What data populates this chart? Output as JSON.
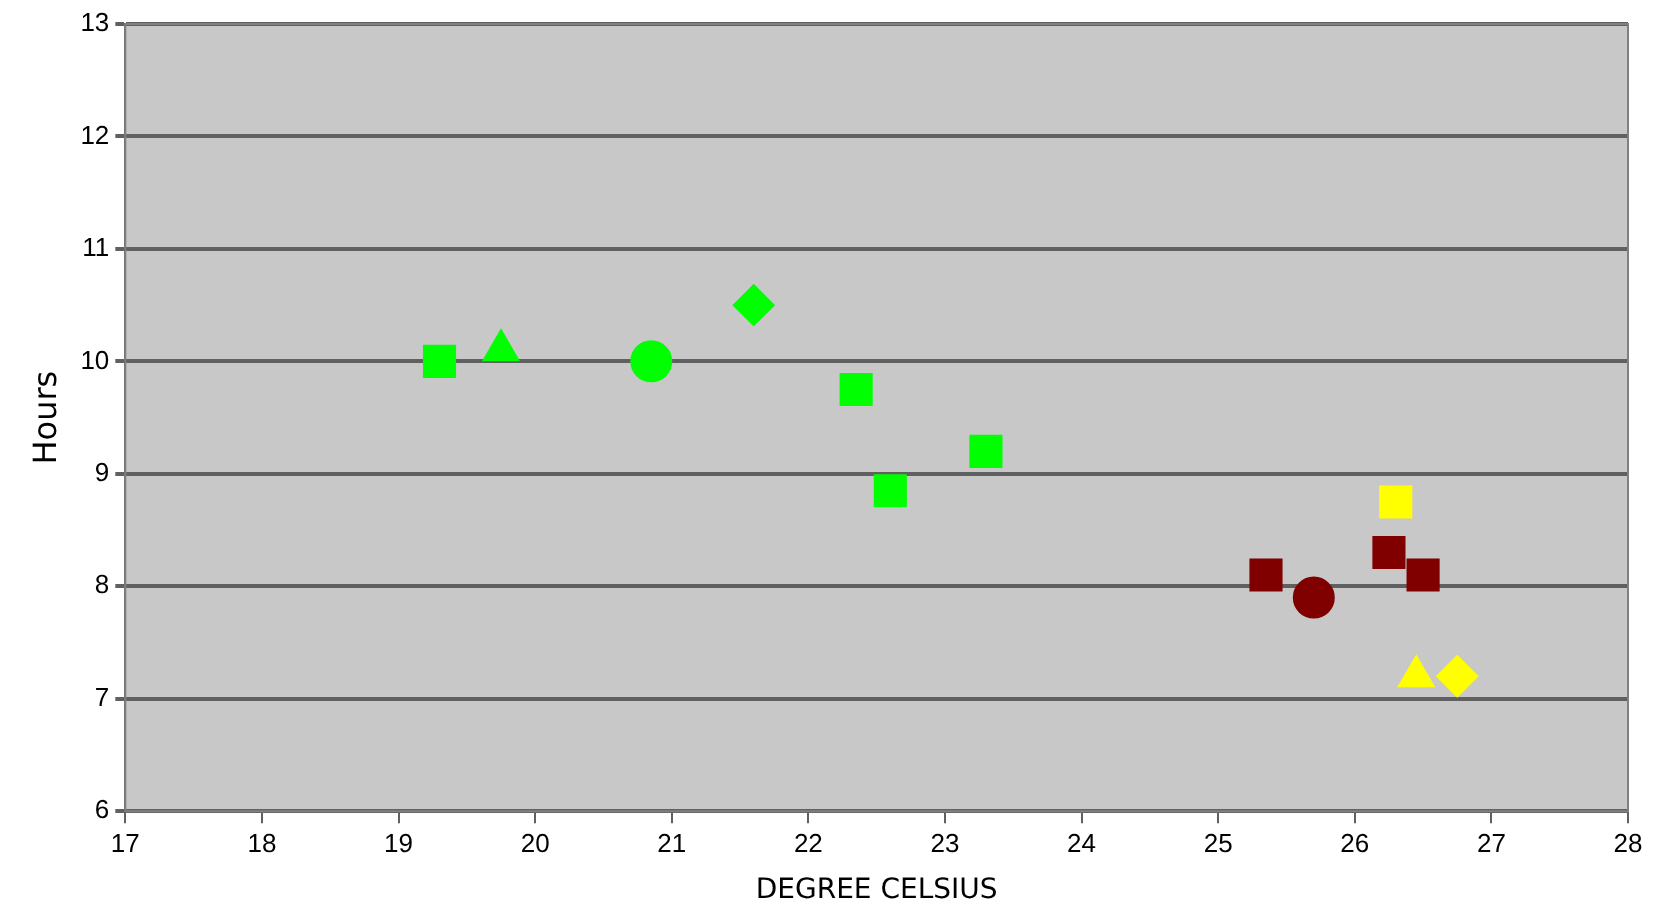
{
  "chart_data": {
    "type": "scatter",
    "xlabel": "DEGREE CELSIUS",
    "ylabel": "Hours",
    "xlim": [
      17,
      28
    ],
    "xticks": [
      17,
      18,
      19,
      20,
      21,
      22,
      23,
      24,
      25,
      26,
      27,
      28
    ],
    "ylim": [
      6,
      13
    ],
    "yticks": [
      6,
      7,
      8,
      9,
      10,
      11,
      12,
      13
    ],
    "grid": "y",
    "legend": false,
    "series": [
      {
        "color": "#00ff00",
        "marker": "square",
        "x": [
          19.3,
          23.3
        ],
        "values": [
          10.0,
          9.2
        ]
      },
      {
        "color": "#00ff00",
        "marker": "triangle",
        "x": [
          19.75
        ],
        "values": [
          10.1
        ]
      },
      {
        "color": "#00ff00",
        "marker": "circle",
        "x": [
          20.85
        ],
        "values": [
          10.0
        ]
      },
      {
        "color": "#00ff00",
        "marker": "diamond",
        "x": [
          21.6
        ],
        "values": [
          10.5
        ]
      },
      {
        "color": "#00ff00",
        "marker": "square",
        "x": [
          22.35
        ],
        "values": [
          9.75
        ]
      },
      {
        "color": "#00ff00",
        "marker": "square",
        "x": [
          22.6
        ],
        "values": [
          8.85
        ]
      },
      {
        "color": "#800000",
        "marker": "square",
        "x": [
          25.35
        ],
        "values": [
          8.1
        ]
      },
      {
        "color": "#800000",
        "marker": "circle",
        "x": [
          25.7
        ],
        "values": [
          7.9
        ]
      },
      {
        "color": "#ffff00",
        "marker": "square",
        "x": [
          26.3
        ],
        "values": [
          8.75
        ]
      },
      {
        "color": "#800000",
        "marker": "square",
        "x": [
          26.25
        ],
        "values": [
          8.3
        ]
      },
      {
        "color": "#800000",
        "marker": "square",
        "x": [
          26.5
        ],
        "values": [
          8.1
        ]
      },
      {
        "color": "#ffff00",
        "marker": "triangle",
        "x": [
          26.45
        ],
        "values": [
          7.2
        ]
      },
      {
        "color": "#ffff00",
        "marker": "diamond",
        "x": [
          26.75
        ],
        "values": [
          7.2
        ]
      }
    ]
  }
}
